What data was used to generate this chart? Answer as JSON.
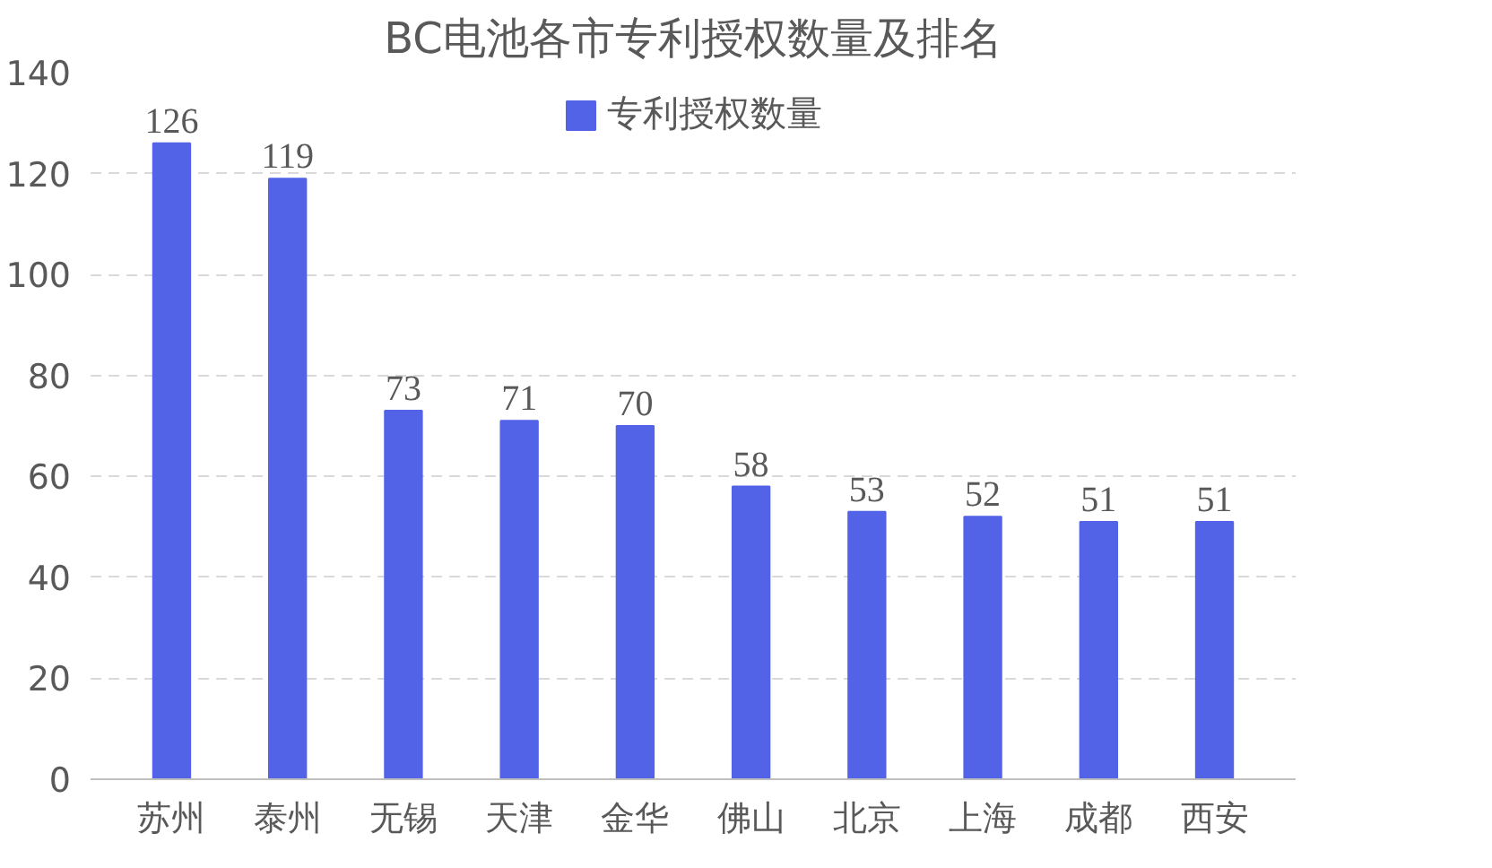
{
  "chart_data": {
    "type": "bar",
    "title": "BC电池各市专利授权数量及排名",
    "categories": [
      "苏州",
      "泰州",
      "无锡",
      "天津",
      "金华",
      "佛山",
      "北京",
      "上海",
      "成都",
      "西安"
    ],
    "series": [
      {
        "name": "专利授权数量",
        "color": "#5263e8",
        "values": [
          126,
          119,
          73,
          71,
          70,
          58,
          53,
          52,
          51,
          51
        ]
      }
    ],
    "ylim": [
      0,
      140
    ],
    "yticks": [
      0,
      20,
      40,
      60,
      80,
      100,
      120,
      140
    ],
    "grid": "y",
    "legend": "top",
    "data_labels": true
  }
}
